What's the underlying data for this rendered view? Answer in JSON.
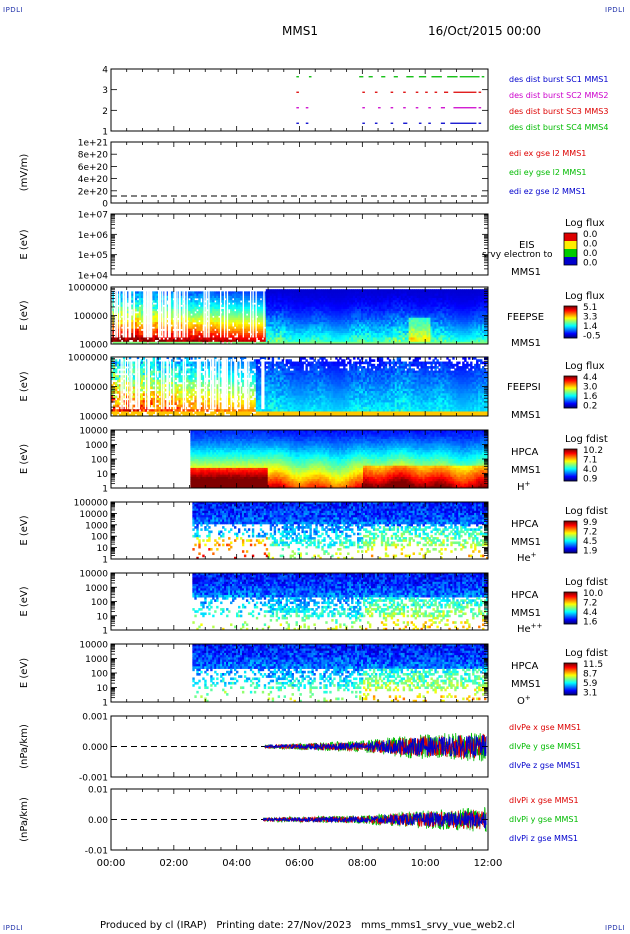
{
  "corner_label": "IPDLI",
  "header": {
    "spacecraft": "MMS1",
    "date": "16/Oct/2015 00:00"
  },
  "footer": {
    "text": "Produced by cl (IRAP)   Printing date: 27/Nov/2023   mms_mms1_srvy_vue_web2.cl"
  },
  "colors": {
    "mms1": "#0000cc",
    "mms2": "#cc00cc",
    "mms3": "#dd0000",
    "mms4": "#00bb00",
    "x": "#dd0000",
    "y": "#00bb00",
    "z": "#0000cc"
  },
  "x_axis": {
    "ticks": [
      "00:00",
      "02:00",
      "04:00",
      "06:00",
      "08:00",
      "10:00",
      "12:00"
    ],
    "range_hours": [
      0,
      12
    ]
  },
  "chart_data": [
    {
      "id": "burst",
      "type": "scatter",
      "ylabel": "",
      "yticks": [
        "4",
        "3",
        "2",
        "1"
      ],
      "ylim": [
        0.5,
        4.5
      ],
      "legend": [
        {
          "text": "des dist burst SC1 MMS1",
          "color_key": "mms1"
        },
        {
          "text": "des dist burst SC2 MMS2",
          "color_key": "mms2"
        },
        {
          "text": "des dist burst SC3 MMS3",
          "color_key": "mms3"
        },
        {
          "text": "des dist burst SC4 MMS4",
          "color_key": "mms4"
        }
      ],
      "series": [
        {
          "level": 4,
          "color_key": "mms4",
          "intervals": [
            [
              5.9,
              5.95
            ],
            [
              6.3,
              6.35
            ],
            [
              7.9,
              8.0
            ],
            [
              8.2,
              8.3
            ],
            [
              8.6,
              8.7
            ],
            [
              9.0,
              9.1
            ],
            [
              9.4,
              9.6
            ],
            [
              9.8,
              10.0
            ],
            [
              10.2,
              10.5
            ],
            [
              10.7,
              11.0
            ],
            [
              11.1,
              11.7
            ],
            [
              11.8,
              11.85
            ]
          ]
        },
        {
          "level": 3,
          "color_key": "mms3",
          "intervals": [
            [
              5.9,
              5.95
            ],
            [
              8.0,
              8.05
            ],
            [
              8.4,
              8.45
            ],
            [
              8.9,
              8.95
            ],
            [
              9.3,
              9.35
            ],
            [
              9.7,
              9.75
            ],
            [
              10.0,
              10.05
            ],
            [
              10.3,
              10.35
            ],
            [
              10.6,
              10.7
            ],
            [
              10.9,
              11.6
            ],
            [
              11.7,
              11.75
            ]
          ]
        },
        {
          "level": 2,
          "color_key": "mms2",
          "intervals": [
            [
              5.9,
              5.95
            ],
            [
              6.2,
              6.25
            ],
            [
              8.0,
              8.05
            ],
            [
              8.5,
              8.55
            ],
            [
              8.9,
              8.95
            ],
            [
              9.3,
              9.35
            ],
            [
              9.7,
              9.75
            ],
            [
              10.1,
              10.15
            ],
            [
              10.5,
              10.6
            ],
            [
              10.9,
              11.6
            ],
            [
              11.7,
              11.75
            ]
          ]
        },
        {
          "level": 1,
          "color_key": "mms1",
          "intervals": [
            [
              5.9,
              5.95
            ],
            [
              6.2,
              6.25
            ],
            [
              8.0,
              8.05
            ],
            [
              8.4,
              8.45
            ],
            [
              8.9,
              8.95
            ],
            [
              9.3,
              9.4
            ],
            [
              9.8,
              9.85
            ],
            [
              10.1,
              10.15
            ],
            [
              10.5,
              10.6
            ],
            [
              10.8,
              11.6
            ],
            [
              11.7,
              11.75
            ]
          ]
        }
      ]
    },
    {
      "id": "edi",
      "type": "line",
      "ylabel": "(mV/m)",
      "yticks": [
        "1e+21",
        "8e+20",
        "6e+20",
        "4e+20",
        "2e+20",
        "0"
      ],
      "ylim": [
        0,
        1e+21
      ],
      "legend": [
        {
          "text": "edi ex gse l2 MMS1",
          "color_key": "x"
        },
        {
          "text": "edi ey gse l2 MMS1",
          "color_key": "y"
        },
        {
          "text": "edi ez gse l2 MMS1",
          "color_key": "z"
        }
      ],
      "zero_line": true
    },
    {
      "id": "eis",
      "type": "heatmap",
      "ylabel": "E (eV)",
      "yticks": [
        "1e+07",
        "1e+06",
        "1e+05",
        "1e+04"
      ],
      "ylim": [
        10000,
        10000000
      ],
      "instrument": [
        "EIS",
        "MMS1"
      ],
      "note": "srvy electron to",
      "colorbar": {
        "title": "Log flux",
        "ticks": [
          "0.0",
          "0.0",
          "0.0",
          "0.0"
        ]
      },
      "empty": true
    },
    {
      "id": "feepse",
      "type": "heatmap",
      "ylabel": "E (eV)",
      "yticks": [
        "1000000",
        "100000",
        "10000"
      ],
      "ylim": [
        10000,
        1000000
      ],
      "instrument": [
        "FEEPSE",
        "MMS1"
      ],
      "colorbar": {
        "title": "Log flux",
        "ticks": [
          "5.1",
          "3.3",
          "1.4",
          "-0.5"
        ],
        "range": [
          -0.5,
          5.1
        ]
      },
      "data_start_hour": 0.0,
      "data_end_hour": 12.0
    },
    {
      "id": "feepsi",
      "type": "heatmap",
      "ylabel": "E (eV)",
      "yticks": [
        "1000000",
        "100000",
        "10000"
      ],
      "ylim": [
        10000,
        1000000
      ],
      "instrument": [
        "FEEPSI",
        "MMS1"
      ],
      "colorbar": {
        "title": "Log flux",
        "ticks": [
          "4.4",
          "3.0",
          "1.6",
          "0.2"
        ],
        "range": [
          0.2,
          4.4
        ]
      },
      "data_start_hour": 0.0,
      "data_end_hour": 12.0
    },
    {
      "id": "hpca_h",
      "type": "heatmap",
      "ylabel": "E (eV)",
      "yticks": [
        "10000",
        "1000",
        "100",
        "10",
        "1"
      ],
      "ylim": [
        1,
        40000
      ],
      "instrument": [
        "HPCA",
        "MMS1"
      ],
      "species": "H+",
      "colorbar": {
        "title": "Log fdist",
        "ticks": [
          "10.2",
          "7.1",
          "4.0",
          "0.9"
        ],
        "range": [
          0.9,
          10.2
        ]
      },
      "data_start_hour": 2.55,
      "data_end_hour": 12.0
    },
    {
      "id": "hpca_he",
      "type": "heatmap",
      "ylabel": "E (eV)",
      "yticks": [
        "100000",
        "10000",
        "1000",
        "100",
        "10",
        "1"
      ],
      "ylim": [
        1,
        100000
      ],
      "instrument": [
        "HPCA",
        "MMS1"
      ],
      "species": "He+",
      "colorbar": {
        "title": "Log fdist",
        "ticks": [
          "9.9",
          "7.2",
          "4.5",
          "1.9"
        ],
        "range": [
          1.9,
          9.9
        ]
      },
      "data_start_hour": 2.6,
      "data_end_hour": 12.0
    },
    {
      "id": "hpca_hepp",
      "type": "heatmap",
      "ylabel": "E (eV)",
      "yticks": [
        "10000",
        "1000",
        "100",
        "10",
        "1"
      ],
      "ylim": [
        1,
        40000
      ],
      "instrument": [
        "HPCA",
        "MMS1"
      ],
      "species": "He++",
      "colorbar": {
        "title": "Log fdist",
        "ticks": [
          "10.0",
          "7.2",
          "4.4",
          "1.6"
        ],
        "range": [
          1.6,
          10.0
        ]
      },
      "data_start_hour": 2.6,
      "data_end_hour": 12.0
    },
    {
      "id": "hpca_o",
      "type": "heatmap",
      "ylabel": "E (eV)",
      "yticks": [
        "10000",
        "1000",
        "100",
        "10",
        "1"
      ],
      "ylim": [
        1,
        40000
      ],
      "instrument": [
        "HPCA",
        "MMS1"
      ],
      "species": "O+",
      "colorbar": {
        "title": "Log fdist",
        "ticks": [
          "11.5",
          "8.7",
          "5.9",
          "3.1"
        ],
        "range": [
          3.1,
          11.5
        ]
      },
      "data_start_hour": 2.6,
      "data_end_hour": 12.0
    },
    {
      "id": "divpe",
      "type": "line",
      "ylabel": "(nPa/km)",
      "yticks": [
        "0.001",
        "0.000",
        "-0.001"
      ],
      "ytick_values": [
        0.001,
        0.0,
        -0.001
      ],
      "ylim": [
        -0.0017,
        0.0017
      ],
      "legend": [
        {
          "text": "dIvPe x gse MMS1",
          "color_key": "x"
        },
        {
          "text": "dIvPe y gse MMS1",
          "color_key": "y"
        },
        {
          "text": "dIvPe z gse MMS1",
          "color_key": "z"
        }
      ],
      "zero_line": true,
      "data_start_hour": 4.9,
      "amplitude_growth": [
        [
          4.9,
          0.0001
        ],
        [
          8.0,
          0.0003
        ],
        [
          9.5,
          0.0006
        ],
        [
          11.9,
          0.0008
        ]
      ]
    },
    {
      "id": "divpi",
      "type": "line",
      "ylabel": "(nPa/km)",
      "yticks": [
        "0.01",
        "0.00",
        "-0.01"
      ],
      "ytick_values": [
        0.01,
        0.0,
        -0.01
      ],
      "ylim": [
        -0.016,
        0.016
      ],
      "legend": [
        {
          "text": "dIvPi x gse MMS1",
          "color_key": "x"
        },
        {
          "text": "dIvPi y gse MMS1",
          "color_key": "y"
        },
        {
          "text": "dIvPi z gse MMS1",
          "color_key": "z"
        }
      ],
      "zero_line": true,
      "data_start_hour": 4.85,
      "amplitude_growth": [
        [
          4.85,
          0.001
        ],
        [
          8.0,
          0.002
        ],
        [
          9.5,
          0.004
        ],
        [
          11.9,
          0.006
        ]
      ]
    }
  ]
}
